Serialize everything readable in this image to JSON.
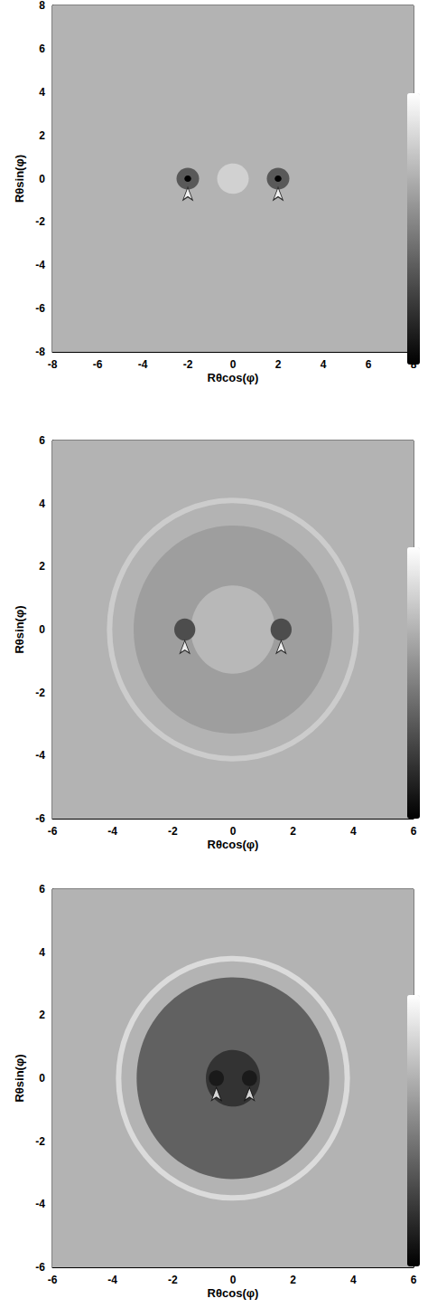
{
  "chart_data": [
    {
      "type": "heatmap",
      "xlabel": "Rθcos(φ)",
      "ylabel": "Rθsin(φ)",
      "xlim": [
        -8,
        8
      ],
      "ylim": [
        -8,
        8
      ],
      "xticks": [
        -8,
        -6,
        -4,
        -2,
        0,
        2,
        4,
        6,
        8
      ],
      "yticks": [
        -8,
        -6,
        -4,
        -2,
        0,
        2,
        4,
        6,
        8
      ],
      "color_range": [
        0,
        1
      ],
      "background": 0.7,
      "disks": [
        {
          "x": 0,
          "y": 0,
          "radius": 0.7,
          "value": 0.82
        }
      ],
      "rings": [],
      "spots": [
        {
          "x": -2,
          "y": 0,
          "radius": 0.5,
          "value": 0.35
        },
        {
          "x": 2,
          "y": 0,
          "radius": 0.5,
          "value": 0.35
        },
        {
          "x": -2,
          "y": 0,
          "radius": 0.15,
          "value": 0.0
        },
        {
          "x": 2,
          "y": 0,
          "radius": 0.15,
          "value": 0.0
        }
      ],
      "arrows": [
        {
          "x": -2,
          "y": -0.4
        },
        {
          "x": 2,
          "y": -0.4
        }
      ]
    },
    {
      "type": "heatmap",
      "xlabel": "Rθcos(φ)",
      "ylabel": "Rθsin(φ)",
      "xlim": [
        -6,
        6
      ],
      "ylim": [
        -6,
        6
      ],
      "xticks": [
        -6,
        -4,
        -2,
        0,
        2,
        4,
        6
      ],
      "yticks": [
        -6,
        -4,
        -2,
        0,
        2,
        4,
        6
      ],
      "color_range": [
        0,
        1
      ],
      "background": 0.7,
      "disks": [
        {
          "x": 0,
          "y": 0,
          "radius": 3.3,
          "value": 0.62
        },
        {
          "x": 0,
          "y": 0,
          "radius": 1.4,
          "value": 0.72
        }
      ],
      "rings": [
        {
          "x": 0,
          "y": 0,
          "radius": 4.1,
          "value": 0.8
        }
      ],
      "spots": [
        {
          "x": -1.6,
          "y": 0,
          "radius": 0.35,
          "value": 0.3
        },
        {
          "x": 1.6,
          "y": 0,
          "radius": 0.35,
          "value": 0.3
        }
      ],
      "arrows": [
        {
          "x": -1.6,
          "y": -0.35
        },
        {
          "x": 1.6,
          "y": -0.35
        }
      ]
    },
    {
      "type": "heatmap",
      "xlabel": "Rθcos(φ)",
      "ylabel": "Rθsin(φ)",
      "xlim": [
        -6,
        6
      ],
      "ylim": [
        -6,
        6
      ],
      "xticks": [
        -6,
        -4,
        -2,
        0,
        2,
        4,
        6
      ],
      "yticks": [
        -6,
        -4,
        -2,
        0,
        2,
        4,
        6
      ],
      "color_range": [
        0,
        1
      ],
      "background": 0.7,
      "disks": [
        {
          "x": 0,
          "y": 0,
          "radius": 3.2,
          "value": 0.38
        },
        {
          "x": 0,
          "y": 0,
          "radius": 0.9,
          "value": 0.2
        }
      ],
      "rings": [
        {
          "x": 0,
          "y": 0,
          "radius": 3.8,
          "value": 0.86
        }
      ],
      "spots": [
        {
          "x": -0.55,
          "y": 0,
          "radius": 0.25,
          "value": 0.1
        },
        {
          "x": 0.55,
          "y": 0,
          "radius": 0.25,
          "value": 0.1
        }
      ],
      "arrows": [
        {
          "x": -0.55,
          "y": -0.3
        },
        {
          "x": 0.55,
          "y": -0.3
        }
      ]
    }
  ]
}
